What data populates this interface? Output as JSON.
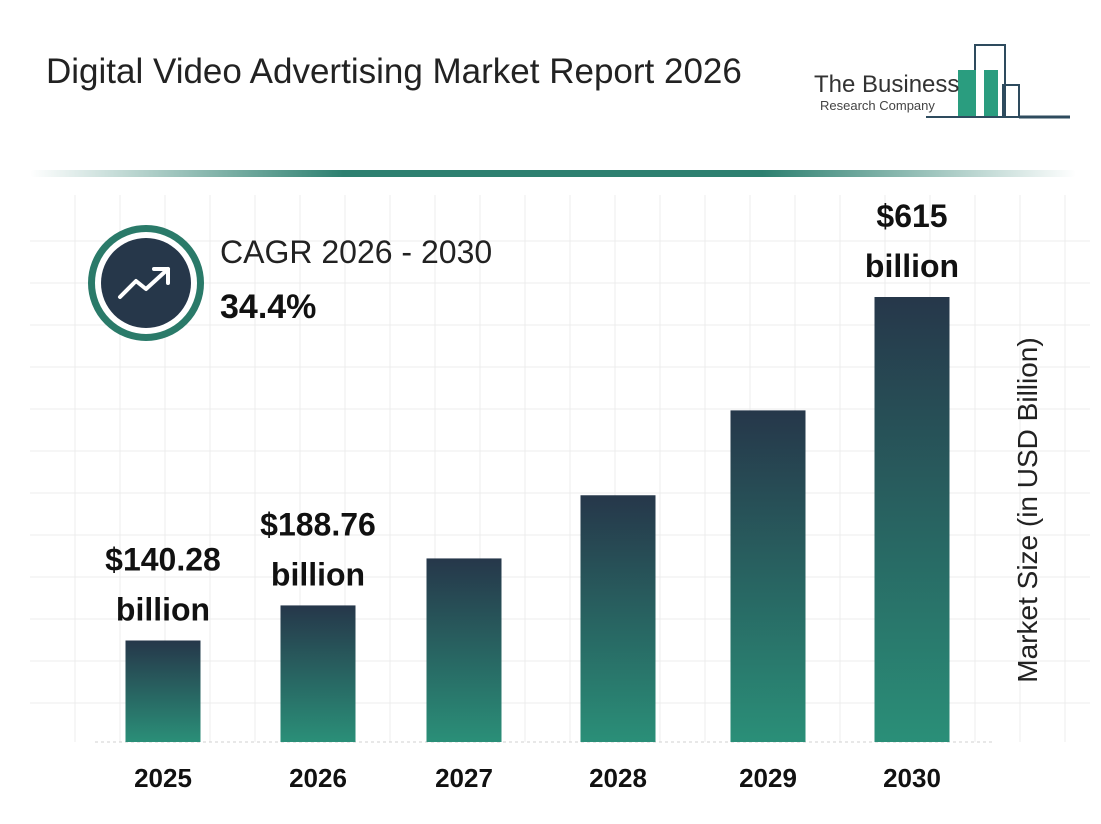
{
  "header": {
    "title": "Digital Video Advertising Market Report 2026"
  },
  "logo": {
    "line1": "The Business",
    "line2": "Research Company",
    "icon": "bar-building-logo",
    "accent": "#2a9d7f"
  },
  "cagr": {
    "label": "CAGR 2026 - 2030",
    "value": "34.4%",
    "icon": "trend-up-icon"
  },
  "colors": {
    "bar_top": "#26374a",
    "bar_bottom": "#2a8f78",
    "accent": "#2a7a69",
    "grid": "#ececec"
  },
  "chart_data": {
    "type": "bar",
    "categories": [
      "2025",
      "2026",
      "2027",
      "2028",
      "2029",
      "2030"
    ],
    "values": [
      140.28,
      188.76,
      253.7,
      341.0,
      458.3,
      615
    ],
    "data_labels": [
      [
        "$140.28",
        "billion"
      ],
      [
        "$188.76",
        "billion"
      ],
      null,
      null,
      null,
      [
        "$615",
        "billion"
      ]
    ],
    "ylabel": "Market Size (in USD Billion)",
    "ylim": [
      0,
      615
    ],
    "grid": true,
    "legend": "none"
  }
}
